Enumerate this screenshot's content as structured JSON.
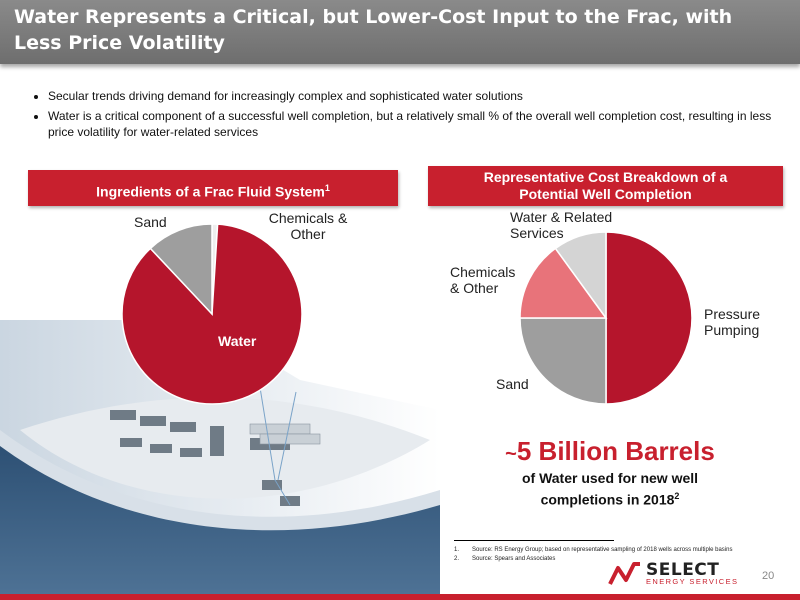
{
  "slide": {
    "title": "Water Represents a Critical, but Lower-Cost Input to the Frac, with Less Price Volatility",
    "bullets": [
      "Secular trends driving demand for increasingly complex and sophisticated water solutions",
      "Water is a critical component of a successful well completion, but a relatively small % of the overall well completion cost, resulting in less price volatility for water-related services"
    ],
    "page_number": "20",
    "colors": {
      "brand_red": "#c8202e",
      "title_gray": "#7a7a7a"
    }
  },
  "left_panel": {
    "header": "Ingredients of a Frac Fluid System",
    "header_sup": "1"
  },
  "right_panel": {
    "header_line1": "Representative Cost Breakdown of a",
    "header_line2": "Potential Well Completion"
  },
  "chart_data": [
    {
      "type": "pie",
      "title": "Ingredients of a Frac Fluid System",
      "slices": [
        {
          "label": "Water",
          "value": 87,
          "color": "#b5152c"
        },
        {
          "label": "Sand",
          "value": 12,
          "color": "#9e9e9e"
        },
        {
          "label": "Chemicals & Other",
          "value": 1,
          "color": "#eeeeee"
        }
      ]
    },
    {
      "type": "pie",
      "title": "Representative Cost Breakdown of a Potential Well Completion",
      "slices": [
        {
          "label": "Pressure Pumping",
          "value": 50,
          "color": "#b5152c"
        },
        {
          "label": "Sand",
          "value": 25,
          "color": "#9e9e9e"
        },
        {
          "label": "Chemicals & Other",
          "value": 15,
          "color": "#e8737a"
        },
        {
          "label": "Water & Related Services",
          "value": 10,
          "color": "#d4d4d4"
        }
      ]
    }
  ],
  "labels": {
    "left": {
      "water": "Water",
      "sand": "Sand",
      "chem_line1": "Chemicals &",
      "chem_line2": "Other"
    },
    "right": {
      "water_line1": "Water & Related",
      "water_line2": "Services",
      "chem_line1": "Chemicals",
      "chem_line2": "& Other",
      "pp_line1": "Pressure",
      "pp_line2": "Pumping",
      "sand": "Sand"
    }
  },
  "stat": {
    "tilde": "~",
    "headline": "5 Billion Barrels",
    "sub_line1": "of Water used for new well",
    "sub_line2": "completions in 2018",
    "sub_sup": "2"
  },
  "footnotes": [
    {
      "num": "1.",
      "text": "Source: RS Energy Group; based on representative sampling of 2018 wells across multiple basins"
    },
    {
      "num": "2.",
      "text": "Source: Spears and Associates"
    }
  ],
  "logo": {
    "name": "SELECT",
    "tagline": "ENERGY SERVICES"
  }
}
